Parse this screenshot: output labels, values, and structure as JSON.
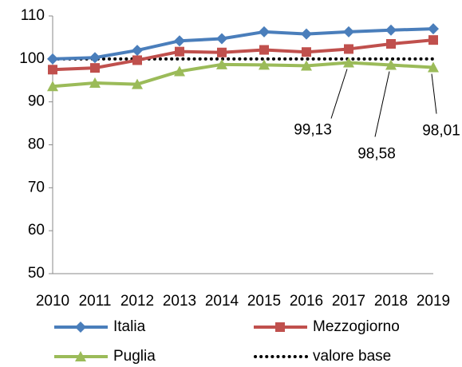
{
  "chart_data": {
    "type": "line",
    "x": [
      "2010",
      "2011",
      "2012",
      "2013",
      "2014",
      "2015",
      "2016",
      "2017",
      "2018",
      "2019"
    ],
    "series": [
      {
        "name": "Italia",
        "color": "#4a7ebb",
        "marker": "diamond",
        "values": [
          100,
          100.3,
          102,
          104.2,
          104.7,
          106.3,
          105.8,
          106.3,
          106.7,
          107
        ]
      },
      {
        "name": "Mezzogiorno",
        "color": "#c0504d",
        "marker": "square",
        "values": [
          97.5,
          97.9,
          99.7,
          101.7,
          101.5,
          102.1,
          101.6,
          102.3,
          103.5,
          104.4
        ]
      },
      {
        "name": "Puglia",
        "color": "#9bbb59",
        "marker": "triangle",
        "values": [
          93.6,
          94.4,
          94.1,
          97.1,
          98.7,
          98.6,
          98.4,
          99.13,
          98.58,
          98.01
        ],
        "value_labels": [
          null,
          null,
          null,
          null,
          null,
          null,
          null,
          "99,13",
          "98,58",
          "98,01"
        ]
      },
      {
        "name": "valore base",
        "color": "#000000",
        "dotted": true,
        "values": [
          100,
          100,
          100,
          100,
          100,
          100,
          100,
          100,
          100,
          100
        ]
      }
    ],
    "ylim": [
      50,
      110
    ],
    "yticks": [
      50,
      60,
      70,
      80,
      90,
      100,
      110
    ],
    "grid": false,
    "legend": "bottom"
  }
}
